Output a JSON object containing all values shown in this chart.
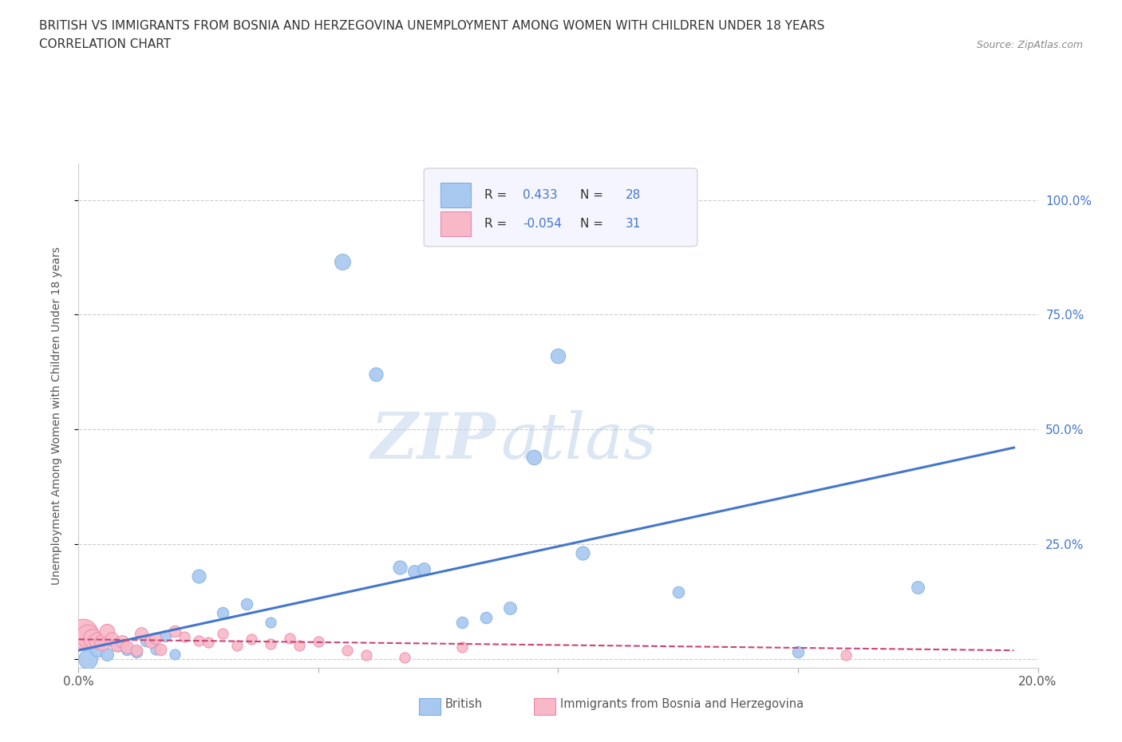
{
  "title_line1": "BRITISH VS IMMIGRANTS FROM BOSNIA AND HERZEGOVINA UNEMPLOYMENT AMONG WOMEN WITH CHILDREN UNDER 18 YEARS",
  "title_line2": "CORRELATION CHART",
  "source": "Source: ZipAtlas.com",
  "ylabel": "Unemployment Among Women with Children Under 18 years",
  "xlim": [
    0.0,
    0.2
  ],
  "ylim": [
    -0.02,
    1.08
  ],
  "british_color": "#a8c8f0",
  "british_edge_color": "#7ab0e0",
  "immigrant_color": "#f9b8c8",
  "immigrant_edge_color": "#e888a8",
  "trend_british_color": "#4477cc",
  "trend_immigrant_color": "#cc4477",
  "watermark_zip": "ZIP",
  "watermark_atlas": "atlas",
  "legend_R_british": "0.433",
  "legend_N_british": "28",
  "legend_R_immigrant": "-0.054",
  "legend_N_immigrant": "31",
  "british_points": [
    [
      0.002,
      0.0,
      18
    ],
    [
      0.004,
      0.02,
      14
    ],
    [
      0.006,
      0.01,
      12
    ],
    [
      0.008,
      0.03,
      13
    ],
    [
      0.01,
      0.02,
      11
    ],
    [
      0.012,
      0.015,
      11
    ],
    [
      0.014,
      0.04,
      11
    ],
    [
      0.016,
      0.02,
      10
    ],
    [
      0.018,
      0.05,
      11
    ],
    [
      0.02,
      0.01,
      10
    ],
    [
      0.025,
      0.18,
      13
    ],
    [
      0.03,
      0.1,
      11
    ],
    [
      0.035,
      0.12,
      11
    ],
    [
      0.04,
      0.08,
      10
    ],
    [
      0.055,
      0.865,
      15
    ],
    [
      0.062,
      0.62,
      13
    ],
    [
      0.067,
      0.2,
      13
    ],
    [
      0.07,
      0.19,
      12
    ],
    [
      0.072,
      0.195,
      12
    ],
    [
      0.08,
      0.08,
      11
    ],
    [
      0.085,
      0.09,
      11
    ],
    [
      0.09,
      0.11,
      12
    ],
    [
      0.095,
      0.44,
      14
    ],
    [
      0.1,
      0.66,
      14
    ],
    [
      0.105,
      0.23,
      13
    ],
    [
      0.125,
      0.145,
      11
    ],
    [
      0.15,
      0.015,
      11
    ],
    [
      0.175,
      0.155,
      12
    ]
  ],
  "immigrant_points": [
    [
      0.001,
      0.055,
      28
    ],
    [
      0.002,
      0.05,
      22
    ],
    [
      0.003,
      0.045,
      18
    ],
    [
      0.004,
      0.04,
      16
    ],
    [
      0.005,
      0.035,
      15
    ],
    [
      0.006,
      0.06,
      14
    ],
    [
      0.007,
      0.042,
      13
    ],
    [
      0.008,
      0.03,
      13
    ],
    [
      0.009,
      0.038,
      12
    ],
    [
      0.01,
      0.025,
      12
    ],
    [
      0.012,
      0.018,
      11
    ],
    [
      0.013,
      0.055,
      12
    ],
    [
      0.015,
      0.038,
      12
    ],
    [
      0.016,
      0.045,
      11
    ],
    [
      0.017,
      0.02,
      11
    ],
    [
      0.02,
      0.06,
      11
    ],
    [
      0.022,
      0.048,
      10
    ],
    [
      0.025,
      0.04,
      10
    ],
    [
      0.027,
      0.035,
      10
    ],
    [
      0.03,
      0.055,
      10
    ],
    [
      0.033,
      0.028,
      10
    ],
    [
      0.036,
      0.042,
      10
    ],
    [
      0.04,
      0.032,
      10
    ],
    [
      0.044,
      0.045,
      10
    ],
    [
      0.046,
      0.028,
      10
    ],
    [
      0.05,
      0.038,
      10
    ],
    [
      0.056,
      0.018,
      10
    ],
    [
      0.06,
      0.008,
      10
    ],
    [
      0.068,
      0.002,
      10
    ],
    [
      0.08,
      0.025,
      10
    ],
    [
      0.16,
      0.008,
      10
    ]
  ],
  "british_trend_x": [
    0.0,
    0.195
  ],
  "british_trend_y": [
    0.018,
    0.46
  ],
  "immigrant_trend_x": [
    0.0,
    0.195
  ],
  "immigrant_trend_y": [
    0.042,
    0.018
  ],
  "grid_color": "#cccccc",
  "background_color": "#ffffff",
  "right_ytick_color": "#4477cc"
}
